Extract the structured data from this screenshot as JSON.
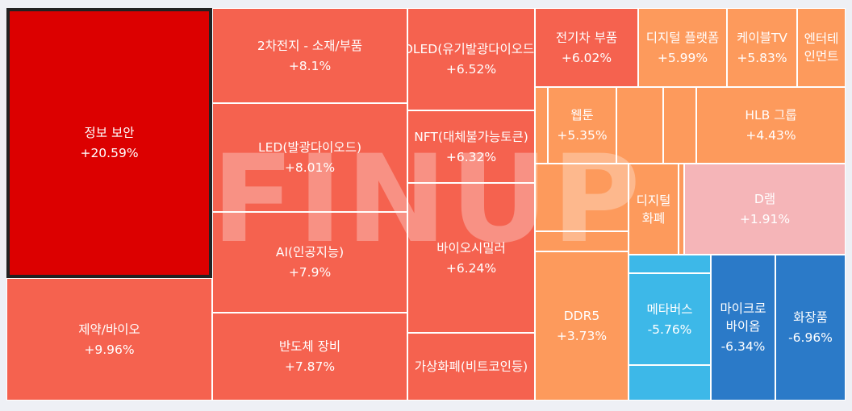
{
  "chart_data": {
    "type": "treemap",
    "watermark": "FINUP",
    "colors": {
      "strong_up": "#dc0000",
      "up": "#f5624f",
      "mild_up": "#f98a54",
      "light_up": "#fd9a5c",
      "faint_up": "#f5b5b8",
      "down": "#3db8e8",
      "strong_down": "#2b7ac8"
    },
    "tiles": [
      {
        "name": "정보 보안",
        "change": "+20.59%",
        "color": "strong_up",
        "highlight": true
      },
      {
        "name": "제약/바이오",
        "change": "+9.96%",
        "color": "up"
      },
      {
        "name": "2차전지 - 소재/부품",
        "change": "+8.1%",
        "color": "up"
      },
      {
        "name": "LED(발광다이오드)",
        "change": "+8.01%",
        "color": "up"
      },
      {
        "name": "AI(인공지능)",
        "change": "+7.9%",
        "color": "up"
      },
      {
        "name": "반도체 장비",
        "change": "+7.87%",
        "color": "up"
      },
      {
        "name": "OLED(유기발광다이오드)",
        "change": "+6.52%",
        "color": "up"
      },
      {
        "name": "NFT(대체불가능토큰)",
        "change": "+6.32%",
        "color": "up"
      },
      {
        "name": "바이오시밀러",
        "change": "+6.24%",
        "color": "up"
      },
      {
        "name": "가상화폐(비트코인등)",
        "change": "",
        "color": "up"
      },
      {
        "name": "전기차 부품",
        "change": "+6.02%",
        "color": "up"
      },
      {
        "name": "디지털 플랫폼",
        "change": "+5.99%",
        "color": "light_up"
      },
      {
        "name": "케이블TV",
        "change": "+5.83%",
        "color": "light_up"
      },
      {
        "name": "엔터테인먼트",
        "change": "",
        "color": "light_up"
      },
      {
        "name": "웹툰",
        "change": "+5.35%",
        "color": "light_up"
      },
      {
        "name": "",
        "change": "",
        "color": "light_up"
      },
      {
        "name": "",
        "change": "",
        "color": "light_up"
      },
      {
        "name": "",
        "change": "",
        "color": "light_up"
      },
      {
        "name": "HLB 그룹",
        "change": "+4.43%",
        "color": "light_up"
      },
      {
        "name": "",
        "change": "",
        "color": "light_up"
      },
      {
        "name": "디지털화폐",
        "change": "",
        "color": "light_up"
      },
      {
        "name": "",
        "change": "",
        "color": "light_up"
      },
      {
        "name": "D램",
        "change": "+1.91%",
        "color": "faint_up"
      },
      {
        "name": "",
        "change": "",
        "color": "light_up"
      },
      {
        "name": "DDR5",
        "change": "+3.73%",
        "color": "light_up"
      },
      {
        "name": "",
        "change": "",
        "color": "down"
      },
      {
        "name": "메타버스",
        "change": "-5.76%",
        "color": "down"
      },
      {
        "name": "",
        "change": "",
        "color": "down"
      },
      {
        "name": "마이크로바이옴",
        "change": "-6.34%",
        "color": "strong_down"
      },
      {
        "name": "화장품",
        "change": "-6.96%",
        "color": "strong_down"
      }
    ]
  }
}
